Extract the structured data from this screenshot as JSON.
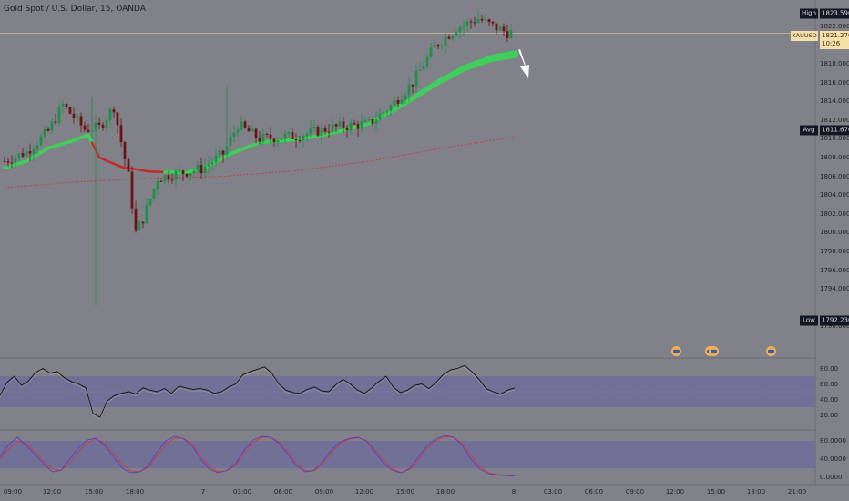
{
  "header": {
    "title": "Gold Spot / U.S. Dollar, 15, OANDA"
  },
  "price_axis": {
    "ticks": [
      "1822.000",
      "1820.000",
      "1818.000",
      "1816.000",
      "1814.000",
      "1812.000",
      "1810.000",
      "1808.000",
      "1806.000",
      "1804.000",
      "1802.000",
      "1800.000",
      "1798.000",
      "1796.000",
      "1794.000",
      "1790.000"
    ],
    "tick_values": [
      1822,
      1820,
      1818,
      1816,
      1814,
      1812,
      1810,
      1808,
      1806,
      1804,
      1802,
      1800,
      1798,
      1796,
      1794,
      1790
    ],
    "high_label": "High",
    "high_value": "1823.590",
    "avg_label": "Avg",
    "avg_value": "1811.670",
    "low_label": "Low",
    "low_value": "1792.230",
    "current_symbol": "XAUUSD",
    "current_price": "1821.270",
    "countdown": "10:26"
  },
  "rsi_axis": {
    "ticks": [
      "80.00",
      "60.00",
      "40.00",
      "20.00"
    ],
    "tick_values": [
      80,
      60,
      40,
      20
    ]
  },
  "stoch_axis": {
    "ticks": [
      "80.0000",
      "40.0000",
      "0.0000"
    ],
    "tick_values": [
      80,
      40,
      0
    ]
  },
  "time_axis": {
    "labels": [
      "09:00",
      "12:00",
      "15:00",
      "18:00",
      "7",
      "03:00",
      "06:00",
      "09:00",
      "12:00",
      "15:00",
      "18:00",
      "8",
      "03:00",
      "06:00",
      "09:00",
      "12:00",
      "15:00",
      "18:00",
      "21:00"
    ]
  },
  "colors": {
    "background": "#818189",
    "bull_candle": "#1f8f4a",
    "bear_candle": "#6b1414",
    "band_green": "#3fcf5a",
    "band_red": "#c42828",
    "ma_dotted": "#c83a3a",
    "indicator_band": "#6e6d9a",
    "rsi_line": "#121212",
    "stoch_k": "#5a3fc0",
    "stoch_d": "#d23b3b",
    "arrow": "#ffffff"
  },
  "icons": [
    "us-flag-event-icon",
    "us-flag-event-icon",
    "us-flag-event-icon",
    "down-arrow-icon"
  ],
  "chart_data": {
    "type": "candlestick",
    "symbol": "XAUUSD",
    "title": "Gold Spot / U.S. Dollar, 15, OANDA",
    "interval": "15",
    "price_range": [
      1788.5,
      1824.5
    ],
    "high": 1823.59,
    "low": 1792.23,
    "avg": 1811.67,
    "last": 1821.27,
    "bars": 140,
    "close_path": [
      [
        0,
        1807.6
      ],
      [
        6,
        1808.6
      ],
      [
        12,
        1810.8
      ],
      [
        16,
        1813.6
      ],
      [
        22,
        1811.0
      ],
      [
        26,
        1811.2
      ],
      [
        30,
        1813.4
      ],
      [
        34,
        1806.0
      ],
      [
        36,
        1800.0
      ],
      [
        38,
        1801.5
      ],
      [
        42,
        1805.8
      ],
      [
        46,
        1806.2
      ],
      [
        54,
        1806.8
      ],
      [
        60,
        1808.4
      ],
      [
        64,
        1811.5
      ],
      [
        70,
        1810.0
      ],
      [
        80,
        1810.3
      ],
      [
        90,
        1811.2
      ],
      [
        100,
        1811.6
      ],
      [
        106,
        1813.5
      ],
      [
        112,
        1816.0
      ],
      [
        118,
        1819.8
      ],
      [
        124,
        1821.8
      ],
      [
        130,
        1822.8
      ],
      [
        134,
        1822.0
      ],
      [
        138,
        1821.3
      ],
      [
        140,
        1821.3
      ]
    ],
    "spikes": [
      {
        "index": 24,
        "high": 1814.4
      },
      {
        "index": 25,
        "low": 1792.23
      },
      {
        "index": 61,
        "high": 1815.6
      },
      {
        "index": 130,
        "high": 1823.59
      }
    ],
    "band_fast": [
      [
        0,
        1806.9
      ],
      [
        6,
        1807.6
      ],
      [
        12,
        1809.0
      ],
      [
        18,
        1809.7
      ],
      [
        23,
        1810.4
      ],
      [
        26,
        1808.0
      ],
      [
        32,
        1807.0
      ],
      [
        40,
        1806.5
      ],
      [
        50,
        1806.4
      ],
      [
        56,
        1807.1
      ],
      [
        62,
        1808.4
      ],
      [
        70,
        1809.6
      ],
      [
        80,
        1809.9
      ],
      [
        90,
        1810.6
      ],
      [
        100,
        1811.6
      ],
      [
        110,
        1813.8
      ],
      [
        118,
        1815.8
      ],
      [
        126,
        1817.5
      ],
      [
        134,
        1818.6
      ],
      [
        140,
        1819.0
      ]
    ],
    "band_fast_red_segment": [
      24,
      44
    ],
    "ma_slow": [
      [
        0,
        1804.8
      ],
      [
        20,
        1805.4
      ],
      [
        40,
        1805.8
      ],
      [
        60,
        1806.0
      ],
      [
        80,
        1806.6
      ],
      [
        100,
        1807.6
      ],
      [
        120,
        1809.0
      ],
      [
        140,
        1810.2
      ]
    ],
    "rsi": {
      "range": [
        10,
        90
      ],
      "band": [
        30,
        70
      ],
      "values": [
        45,
        62,
        70,
        58,
        64,
        75,
        80,
        74,
        76,
        68,
        63,
        60,
        55,
        22,
        17,
        38,
        45,
        48,
        50,
        47,
        55,
        52,
        50,
        54,
        48,
        57,
        55,
        53,
        54,
        52,
        48,
        50,
        56,
        60,
        72,
        76,
        79,
        82,
        74,
        60,
        52,
        49,
        48,
        53,
        56,
        51,
        50,
        59,
        66,
        60,
        52,
        48,
        55,
        63,
        70,
        56,
        49,
        52,
        58,
        60,
        54,
        62,
        72,
        78,
        80,
        84,
        76,
        66,
        54,
        50,
        47,
        52,
        55
      ]
    },
    "stochastic": {
      "range": [
        0,
        100
      ],
      "band": [
        20,
        80
      ],
      "k": [
        45,
        72,
        88,
        70,
        50,
        30,
        12,
        15,
        40,
        65,
        82,
        86,
        70,
        45,
        20,
        10,
        12,
        25,
        55,
        80,
        90,
        85,
        70,
        40,
        18,
        10,
        15,
        30,
        60,
        82,
        90,
        88,
        75,
        50,
        25,
        12,
        15,
        35,
        60,
        78,
        85,
        88,
        80,
        55,
        30,
        15,
        10,
        20,
        45,
        70,
        85,
        92,
        88,
        70,
        40,
        18,
        8,
        5,
        4,
        3
      ],
      "d": [
        40,
        62,
        80,
        75,
        56,
        36,
        18,
        15,
        32,
        56,
        76,
        84,
        74,
        52,
        28,
        14,
        12,
        22,
        46,
        72,
        86,
        86,
        74,
        46,
        24,
        12,
        14,
        26,
        52,
        76,
        88,
        88,
        78,
        56,
        30,
        15,
        14,
        30,
        54,
        74,
        84,
        87,
        81,
        60,
        36,
        18,
        11,
        17,
        38,
        64,
        81,
        89,
        88,
        74,
        48,
        24,
        10,
        6,
        4,
        3
      ]
    }
  }
}
